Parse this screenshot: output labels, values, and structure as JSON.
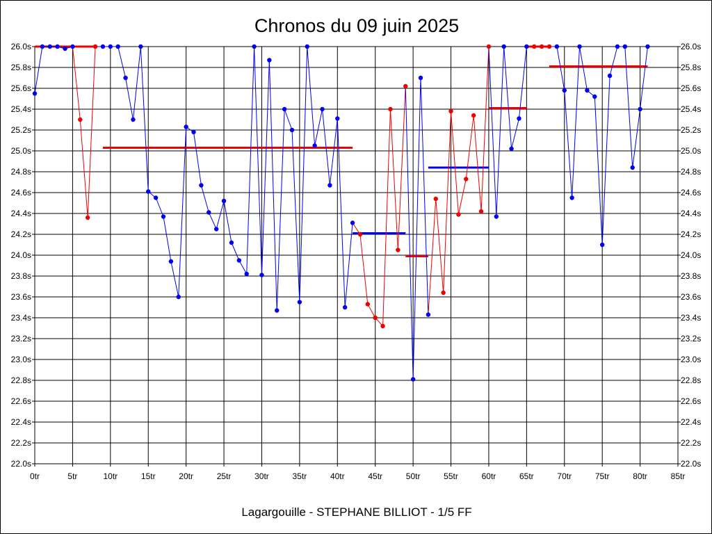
{
  "chart_data": {
    "type": "line",
    "title": "Chronos du 09 juin 2025",
    "subtitle": "Lagargouille - STEPHANE BILLIOT - 1/5 FF",
    "xlabel": "",
    "ylabel": "",
    "xlim": [
      0,
      85
    ],
    "ylim": [
      22.0,
      26.0
    ],
    "x_ticks": [
      0,
      5,
      10,
      15,
      20,
      25,
      30,
      35,
      40,
      45,
      50,
      55,
      60,
      65,
      70,
      75,
      80,
      85
    ],
    "x_tick_labels": [
      "0tr",
      "5tr",
      "10tr",
      "15tr",
      "20tr",
      "25tr",
      "30tr",
      "35tr",
      "40tr",
      "45tr",
      "50tr",
      "55tr",
      "60tr",
      "65tr",
      "70tr",
      "75tr",
      "80tr",
      "85tr"
    ],
    "y_ticks": [
      22.0,
      22.2,
      22.4,
      22.6,
      22.8,
      23.0,
      23.2,
      23.4,
      23.6,
      23.8,
      24.0,
      24.2,
      24.4,
      24.6,
      24.8,
      25.0,
      25.2,
      25.4,
      25.6,
      25.8,
      26.0
    ],
    "y_tick_labels": [
      "22.0s",
      "22.2s",
      "22.4s",
      "22.6s",
      "22.8s",
      "23.0s",
      "23.2s",
      "23.4s",
      "23.6s",
      "23.8s",
      "24.0s",
      "24.2s",
      "24.4s",
      "24.6s",
      "24.8s",
      "25.0s",
      "25.2s",
      "25.4s",
      "25.6s",
      "25.8s",
      "26.0s"
    ],
    "grid": true,
    "colors": {
      "blue": "#0000ee",
      "red": "#ee0000"
    },
    "laps": [
      [
        0,
        25.55
      ],
      [
        1,
        26.0
      ],
      [
        2,
        26.0
      ],
      [
        3,
        26.0
      ],
      [
        4,
        25.98
      ],
      [
        5,
        26.0
      ],
      [
        6,
        25.3
      ],
      [
        7,
        24.36
      ],
      [
        8,
        26.0
      ],
      [
        9,
        26.0
      ],
      [
        10,
        26.0
      ],
      [
        11,
        26.0
      ],
      [
        12,
        25.7
      ],
      [
        13,
        25.3
      ],
      [
        14,
        26.0
      ],
      [
        15,
        24.61
      ],
      [
        16,
        24.55
      ],
      [
        17,
        24.37
      ],
      [
        18,
        23.94
      ],
      [
        19,
        23.6
      ],
      [
        20,
        25.23
      ],
      [
        21,
        25.18
      ],
      [
        22,
        24.67
      ],
      [
        23,
        24.41
      ],
      [
        24,
        24.25
      ],
      [
        25,
        24.52
      ],
      [
        26,
        24.12
      ],
      [
        27,
        23.95
      ],
      [
        28,
        23.82
      ],
      [
        29,
        26.0
      ],
      [
        30,
        23.81
      ],
      [
        31,
        25.87
      ],
      [
        32,
        23.47
      ],
      [
        33,
        25.4
      ],
      [
        34,
        25.2
      ],
      [
        35,
        23.55
      ],
      [
        36,
        26.0
      ],
      [
        37,
        25.05
      ],
      [
        38,
        25.4
      ],
      [
        39,
        24.67
      ],
      [
        40,
        25.31
      ],
      [
        41,
        23.5
      ],
      [
        42,
        24.31
      ],
      [
        43,
        24.2
      ],
      [
        44,
        23.53
      ],
      [
        45,
        23.4
      ],
      [
        46,
        23.32
      ],
      [
        47,
        25.4
      ],
      [
        48,
        24.05
      ],
      [
        49,
        25.62
      ],
      [
        50,
        22.81
      ],
      [
        51,
        25.7
      ],
      [
        52,
        23.43
      ],
      [
        53,
        24.54
      ],
      [
        54,
        23.64
      ],
      [
        55,
        25.38
      ],
      [
        56,
        24.39
      ],
      [
        57,
        24.73
      ],
      [
        58,
        25.34
      ],
      [
        59,
        24.42
      ],
      [
        60,
        26.0
      ],
      [
        61,
        24.37
      ],
      [
        62,
        26.0
      ],
      [
        63,
        25.02
      ],
      [
        64,
        25.31
      ],
      [
        65,
        26.0
      ],
      [
        66,
        26.0
      ],
      [
        67,
        26.0
      ],
      [
        68,
        26.0
      ],
      [
        69,
        26.0
      ],
      [
        70,
        25.58
      ],
      [
        71,
        24.55
      ],
      [
        72,
        26.0
      ],
      [
        73,
        25.58
      ],
      [
        74,
        25.52
      ],
      [
        75,
        24.1
      ],
      [
        76,
        25.72
      ],
      [
        77,
        26.0
      ],
      [
        78,
        26.0
      ],
      [
        79,
        24.84
      ],
      [
        80,
        25.4
      ],
      [
        81,
        26.0
      ]
    ],
    "segments": [
      {
        "color": "red",
        "from": 0,
        "to": 5,
        "avg": 26.0
      },
      {
        "color": "red",
        "from": 5,
        "to": 8,
        "avg": 26.0
      },
      {
        "color": "red",
        "from": 9,
        "to": 42,
        "avg": 25.03
      },
      {
        "color": "blue",
        "from": 42,
        "to": 49,
        "avg": 24.21
      },
      {
        "color": "red",
        "from": 49,
        "to": 52,
        "avg": 23.99
      },
      {
        "color": "blue",
        "from": 52,
        "to": 60,
        "avg": 24.84
      },
      {
        "color": "red",
        "from": 60,
        "to": 65,
        "avg": 25.41
      },
      {
        "color": "red",
        "from": 65,
        "to": 68,
        "avg": 26.0
      },
      {
        "color": "red",
        "from": 68,
        "to": 81,
        "avg": 25.81
      }
    ]
  }
}
